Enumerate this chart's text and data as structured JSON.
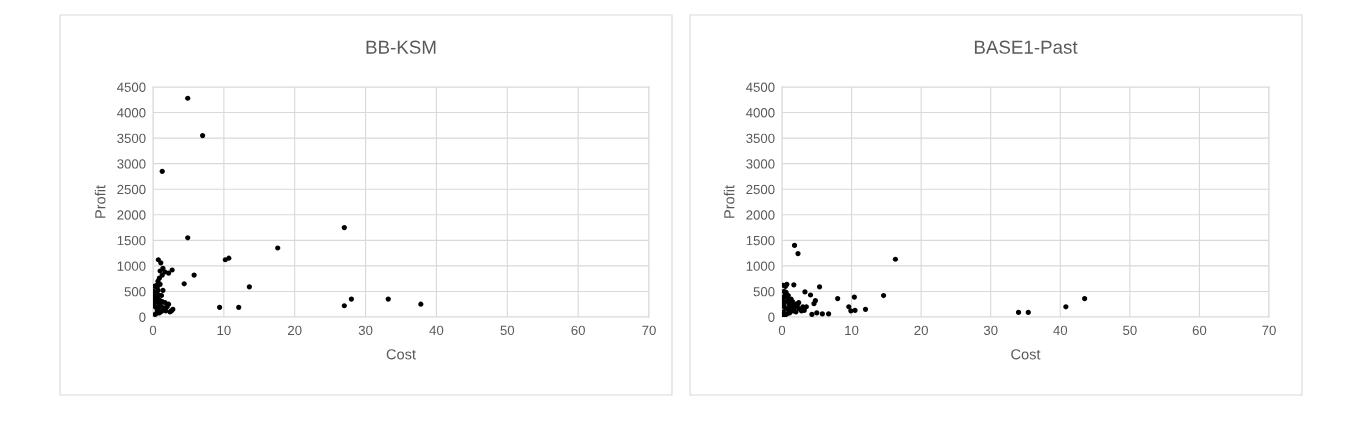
{
  "chart_data": [
    {
      "type": "scatter",
      "title": "BB-KSM",
      "xlabel": "Cost",
      "ylabel": "Profit",
      "xlim": [
        0,
        70
      ],
      "xticks": [
        0,
        10,
        20,
        30,
        40,
        50,
        60,
        70
      ],
      "ylim": [
        0,
        4500
      ],
      "yticks": [
        0,
        500,
        1000,
        1500,
        2000,
        2500,
        3000,
        3500,
        4000,
        4500
      ],
      "grid": true,
      "marker": "circle",
      "series": [
        {
          "color": "#000000",
          "x": [
            4.9,
            7.0,
            1.3,
            4.9,
            27.0,
            17.6,
            10.2,
            10.7,
            13.6,
            5.8,
            4.4,
            9.4,
            12.1,
            27.0,
            28.0,
            33.2,
            37.8,
            0.3,
            0.1,
            0.2,
            0.4,
            0.2,
            0.3,
            0.1,
            0.2,
            0.5,
            0.6,
            0.7,
            0.5,
            0.8,
            0.6,
            0.9,
            0.7,
            1.0,
            0.8,
            0.6,
            0.9,
            1.2,
            1.1,
            1.3,
            1.2,
            1.4,
            1.0,
            0.7,
            0.9,
            1.5,
            1.8,
            2.0,
            2.4,
            2.8,
            2.6,
            1.7,
            2.2,
            0.3,
            0.05,
            0.5,
            1.0,
            0.75,
            1.1,
            1.4,
            1.7,
            2.2,
            2.7,
            1.3
          ],
          "values": [
            4280,
            3550,
            2850,
            1550,
            1750,
            1350,
            1120,
            1150,
            590,
            820,
            650,
            190,
            190,
            220,
            350,
            350,
            250,
            200,
            250,
            300,
            350,
            400,
            450,
            500,
            600,
            620,
            580,
            520,
            480,
            430,
            380,
            330,
            280,
            240,
            190,
            140,
            80,
            110,
            210,
            300,
            420,
            520,
            640,
            700,
            760,
            180,
            120,
            200,
            100,
            150,
            120,
            280,
            250,
            50,
            320,
            70,
            900,
            1120,
            1060,
            950,
            880,
            860,
            920,
            820
          ]
        }
      ]
    },
    {
      "type": "scatter",
      "title": "BASE1-Past",
      "xlabel": "Cost",
      "ylabel": "Profit",
      "xlim": [
        0,
        70
      ],
      "xticks": [
        0,
        10,
        20,
        30,
        40,
        50,
        60,
        70
      ],
      "ylim": [
        0,
        4500
      ],
      "yticks": [
        0,
        500,
        1000,
        1500,
        2000,
        2500,
        3000,
        3500,
        4000,
        4500
      ],
      "grid": true,
      "marker": "circle",
      "series": [
        {
          "color": "#000000",
          "x": [
            1.8,
            2.3,
            16.3,
            14.6,
            10.4,
            8.0,
            12.0,
            10.5,
            9.6,
            9.9,
            6.7,
            5.8,
            5.0,
            5.4,
            4.8,
            4.6,
            4.1,
            3.3,
            1.7,
            4.3,
            3.5,
            3.2,
            34.0,
            35.4,
            40.8,
            43.5,
            0.1,
            0.2,
            0.3,
            0.2,
            0.4,
            0.1,
            0.3,
            0.5,
            0.6,
            0.2,
            0.7,
            0.5,
            0.8,
            0.9,
            1.0,
            1.2,
            1.4,
            1.6,
            1.8,
            2.0,
            2.2,
            2.5,
            2.8,
            3.0,
            1.1,
            0.7,
            0.4,
            1.5,
            1.3,
            0.9,
            2.4,
            0.6,
            1.0,
            2.0,
            0.3,
            1.6
          ],
          "values": [
            1400,
            1240,
            1130,
            420,
            390,
            360,
            150,
            130,
            200,
            120,
            60,
            60,
            80,
            590,
            320,
            260,
            430,
            490,
            630,
            50,
            200,
            130,
            90,
            90,
            200,
            360,
            50,
            100,
            200,
            250,
            300,
            350,
            400,
            450,
            480,
            620,
            640,
            600,
            380,
            300,
            250,
            200,
            150,
            120,
            180,
            100,
            220,
            160,
            120,
            200,
            80,
            60,
            30,
            300,
            350,
            420,
            280,
            170,
            130,
            250,
            500,
            220
          ]
        }
      ]
    }
  ]
}
